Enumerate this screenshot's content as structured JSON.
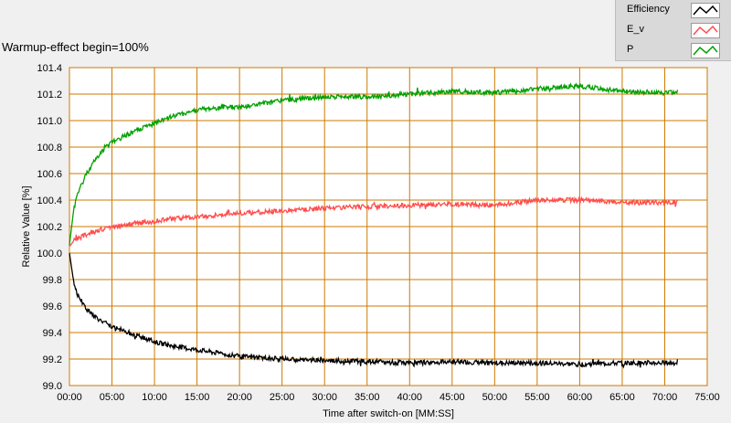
{
  "chart_data": {
    "type": "line",
    "title": "Warmup-effect begin=100%",
    "xlabel": "Time after switch-on [MM:SS]",
    "ylabel": "Relative Value [%]",
    "xlim": [
      0,
      75
    ],
    "ylim": [
      99.0,
      101.4
    ],
    "x_ticks": [
      "00:00",
      "05:00",
      "10:00",
      "15:00",
      "20:00",
      "25:00",
      "30:00",
      "35:00",
      "40:00",
      "45:00",
      "50:00",
      "55:00",
      "60:00",
      "65:00",
      "70:00",
      "75:00"
    ],
    "y_ticks": [
      "99.0",
      "99.2",
      "99.4",
      "99.6",
      "99.8",
      "100.0",
      "100.2",
      "100.4",
      "100.6",
      "100.8",
      "101.0",
      "101.2",
      "101.4"
    ],
    "grid": true,
    "legend_position": "top-right",
    "x_minutes": [
      0,
      0.5,
      1,
      2,
      3,
      4,
      5,
      7,
      10,
      12,
      15,
      18,
      20,
      25,
      30,
      35,
      40,
      45,
      50,
      55,
      60,
      65,
      70,
      71.5
    ],
    "series": [
      {
        "name": "Efficiency",
        "color": "#000000",
        "values": [
          100.0,
          99.78,
          99.68,
          99.58,
          99.52,
          99.48,
          99.44,
          99.4,
          99.33,
          99.3,
          99.27,
          99.24,
          99.22,
          99.2,
          99.19,
          99.18,
          99.17,
          99.18,
          99.17,
          99.17,
          99.16,
          99.17,
          99.17,
          99.17
        ]
      },
      {
        "name": "E_v",
        "color": "#ff4d4d",
        "values": [
          100.05,
          100.09,
          100.11,
          100.14,
          100.16,
          100.18,
          100.2,
          100.22,
          100.24,
          100.26,
          100.27,
          100.29,
          100.3,
          100.32,
          100.34,
          100.35,
          100.36,
          100.37,
          100.36,
          100.4,
          100.4,
          100.38,
          100.38,
          100.39
        ]
      },
      {
        "name": "P",
        "color": "#00a000",
        "values": [
          100.06,
          100.33,
          100.45,
          100.6,
          100.7,
          100.78,
          100.84,
          100.9,
          100.98,
          101.03,
          101.08,
          101.1,
          101.1,
          101.15,
          101.18,
          101.18,
          101.2,
          101.22,
          101.21,
          101.24,
          101.26,
          101.22,
          101.21,
          101.22
        ]
      }
    ]
  }
}
